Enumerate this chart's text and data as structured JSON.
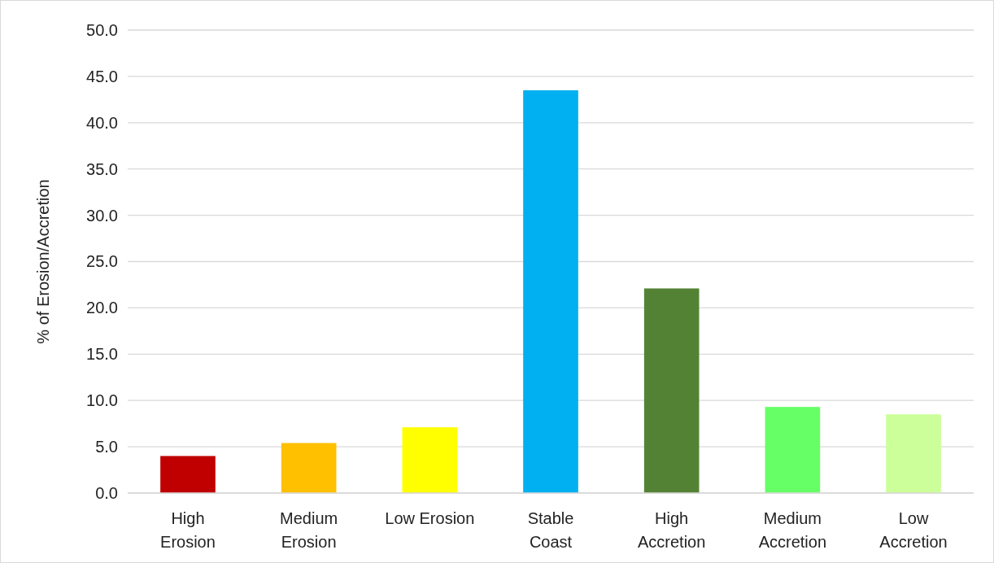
{
  "chart_data": {
    "type": "bar",
    "ylabel": "% of Erosion/Accretion",
    "categories": [
      "High Erosion",
      "Medium Erosion",
      "Low Erosion",
      "Stable Coast",
      "High Accretion",
      "Medium Accretion",
      "Low Accretion"
    ],
    "values": [
      4.0,
      5.4,
      7.1,
      43.5,
      22.1,
      9.3,
      8.5
    ],
    "colors": [
      "#c00000",
      "#ffc000",
      "#ffff00",
      "#00b0f0",
      "#548235",
      "#66ff66",
      "#ccff99"
    ],
    "ylim": [
      0,
      50
    ],
    "yticks": [
      {
        "value": 0,
        "label": "0.0"
      },
      {
        "value": 5,
        "label": "5.0"
      },
      {
        "value": 10,
        "label": "10.0"
      },
      {
        "value": 15,
        "label": "15.0"
      },
      {
        "value": 20,
        "label": "20.0"
      },
      {
        "value": 25,
        "label": "25.0"
      },
      {
        "value": 30,
        "label": "30.0"
      },
      {
        "value": 35,
        "label": "35.0"
      },
      {
        "value": 40,
        "label": "40.0"
      },
      {
        "value": 45,
        "label": "45.0"
      },
      {
        "value": 50,
        "label": "50.0"
      }
    ],
    "grid": "y"
  }
}
